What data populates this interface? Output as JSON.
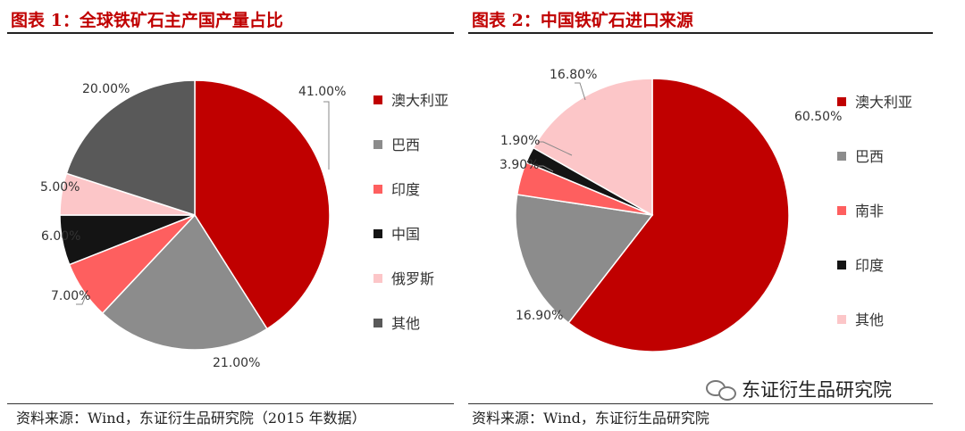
{
  "chart_data": [
    {
      "type": "pie",
      "title": "图表 1：全球铁矿石主产国产量占比",
      "categories": [
        "澳大利亚",
        "巴西",
        "印度",
        "中国",
        "俄罗斯",
        "其他"
      ],
      "values": [
        41.0,
        21.0,
        7.0,
        6.0,
        5.0,
        20.0
      ],
      "labels": [
        "41.00%",
        "21.00%",
        "7.00%",
        "6.00%",
        "5.00%",
        "20.00%"
      ],
      "colors": [
        "#c00000",
        "#8c8c8c",
        "#fe5f5f",
        "#141414",
        "#fcc6c8",
        "#595959"
      ],
      "legend": "right",
      "source": "资料来源：Wind，东证衍生品研究院（2015 年数据）"
    },
    {
      "type": "pie",
      "title": "图表 2：中国铁矿石进口来源",
      "categories": [
        "澳大利亚",
        "巴西",
        "南非",
        "印度",
        "其他"
      ],
      "values": [
        60.5,
        16.9,
        3.9,
        1.9,
        16.8
      ],
      "labels": [
        "60.50%",
        "16.90%",
        "3.90%",
        "1.90%",
        "16.80%"
      ],
      "colors": [
        "#c00000",
        "#8c8c8c",
        "#fe5f5f",
        "#141414",
        "#fcc6c8"
      ],
      "legend": "right",
      "source": "资料来源：Wind，东证衍生品研究院"
    }
  ],
  "watermark": {
    "text": "东证衍生品研究院",
    "icon": "wechat-icon"
  }
}
